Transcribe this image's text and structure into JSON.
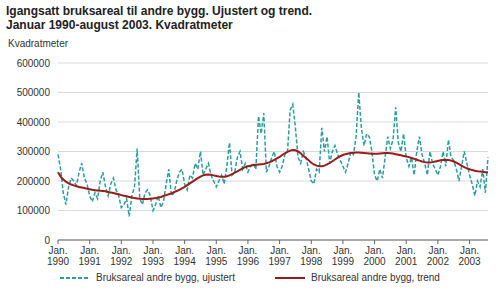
{
  "chart_data": {
    "type": "line",
    "title": "Igangsatt bruksareal til andre bygg. Ujustert og trend. Januar 1990-august 2003. Kvadratmeter",
    "y_label": "Kvadratmeter",
    "categories": [
      "Jan. 1990",
      null,
      null,
      null,
      null,
      null,
      null,
      null,
      null,
      null,
      null,
      null,
      "Jan. 1991",
      null,
      null,
      null,
      null,
      null,
      null,
      null,
      null,
      null,
      null,
      null,
      "Jan. 1992",
      null,
      null,
      null,
      null,
      null,
      null,
      null,
      null,
      null,
      null,
      null,
      "Jan. 1993",
      null,
      null,
      null,
      null,
      null,
      null,
      null,
      null,
      null,
      null,
      null,
      "Jan. 1994",
      null,
      null,
      null,
      null,
      null,
      null,
      null,
      null,
      null,
      null,
      null,
      "Jan. 1995",
      null,
      null,
      null,
      null,
      null,
      null,
      null,
      null,
      null,
      null,
      null,
      "Jan. 1996",
      null,
      null,
      null,
      null,
      null,
      null,
      null,
      null,
      null,
      null,
      null,
      "Jan. 1997",
      null,
      null,
      null,
      null,
      null,
      null,
      null,
      null,
      null,
      null,
      null,
      "Jan. 1998",
      null,
      null,
      null,
      null,
      null,
      null,
      null,
      null,
      null,
      null,
      null,
      "Jan. 1999",
      null,
      null,
      null,
      null,
      null,
      null,
      null,
      null,
      null,
      null,
      null,
      "Jan. 2000",
      null,
      null,
      null,
      null,
      null,
      null,
      null,
      null,
      null,
      null,
      null,
      "Jan. 2001",
      null,
      null,
      null,
      null,
      null,
      null,
      null,
      null,
      null,
      null,
      null,
      "Jan. 2002",
      null,
      null,
      null,
      null,
      null,
      null,
      null,
      null,
      null,
      null,
      null,
      "Jan. 2003",
      null,
      null,
      null,
      null,
      null,
      null,
      null
    ],
    "series": [
      {
        "name": "Bruksareal andre bygg, ujustert",
        "color": "#2a9d9f",
        "line_style": "dashed",
        "values": [
          290000,
          240000,
          160000,
          120000,
          180000,
          210000,
          200000,
          185000,
          230000,
          260000,
          210000,
          190000,
          150000,
          130000,
          160000,
          140000,
          200000,
          230000,
          180000,
          150000,
          190000,
          210000,
          170000,
          150000,
          110000,
          120000,
          140000,
          80000,
          150000,
          180000,
          310000,
          140000,
          120000,
          160000,
          170000,
          150000,
          100000,
          120000,
          150000,
          110000,
          130000,
          190000,
          240000,
          150000,
          160000,
          200000,
          230000,
          240000,
          190000,
          170000,
          220000,
          210000,
          260000,
          240000,
          300000,
          220000,
          240000,
          260000,
          220000,
          200000,
          180000,
          200000,
          220000,
          190000,
          250000,
          330000,
          220000,
          230000,
          280000,
          300000,
          240000,
          260000,
          230000,
          250000,
          260000,
          240000,
          420000,
          360000,
          430000,
          230000,
          250000,
          280000,
          300000,
          250000,
          230000,
          250000,
          290000,
          300000,
          440000,
          460000,
          380000,
          280000,
          260000,
          300000,
          280000,
          240000,
          200000,
          190000,
          240000,
          230000,
          380000,
          300000,
          350000,
          260000,
          300000,
          320000,
          290000,
          270000,
          250000,
          230000,
          260000,
          300000,
          290000,
          350000,
          500000,
          380000,
          320000,
          360000,
          350000,
          300000,
          220000,
          200000,
          240000,
          210000,
          280000,
          350000,
          310000,
          340000,
          450000,
          330000,
          300000,
          360000,
          280000,
          250000,
          280000,
          220000,
          300000,
          350000,
          290000,
          260000,
          220000,
          300000,
          260000,
          240000,
          220000,
          250000,
          300000,
          250000,
          340000,
          280000,
          270000,
          240000,
          200000,
          250000,
          300000,
          260000,
          220000,
          190000,
          150000,
          200000,
          180000,
          240000,
          160000,
          280000
        ]
      },
      {
        "name": "Bruksareal andre bygg, trend",
        "color": "#9b1b1b",
        "line_style": "solid",
        "values": [
          230000,
          215000,
          205000,
          198000,
          192000,
          188000,
          185000,
          182000,
          180000,
          178000,
          176000,
          174000,
          172000,
          170000,
          169000,
          168000,
          167000,
          166000,
          165000,
          163000,
          161000,
          159000,
          157000,
          155000,
          152000,
          150000,
          148000,
          146000,
          144000,
          142000,
          141000,
          140000,
          139000,
          139000,
          139000,
          140000,
          141000,
          142000,
          144000,
          146000,
          149000,
          152000,
          155000,
          158000,
          162000,
          166000,
          170000,
          175000,
          180000,
          186000,
          192000,
          198000,
          204000,
          210000,
          215000,
          219000,
          221000,
          222000,
          221000,
          219000,
          217000,
          215000,
          214000,
          214000,
          216000,
          219000,
          223000,
          228000,
          233000,
          238000,
          243000,
          247000,
          250000,
          252000,
          254000,
          255000,
          256000,
          257000,
          258000,
          260000,
          263000,
          267000,
          272000,
          277000,
          282000,
          288000,
          294000,
          299000,
          303000,
          305000,
          304000,
          300000,
          294000,
          286000,
          278000,
          270000,
          262000,
          256000,
          252000,
          250000,
          250000,
          252000,
          256000,
          261000,
          267000,
          273000,
          279000,
          284000,
          288000,
          291000,
          293000,
          295000,
          296000,
          297000,
          297000,
          296000,
          295000,
          294000,
          293000,
          292000,
          292000,
          292000,
          293000,
          294000,
          295000,
          295000,
          294000,
          293000,
          291000,
          289000,
          287000,
          285000,
          283000,
          281000,
          278000,
          275000,
          272000,
          269000,
          266000,
          264000,
          263000,
          263000,
          264000,
          266000,
          268000,
          270000,
          271000,
          272000,
          271000,
          269000,
          266000,
          262000,
          257000,
          252000,
          247000,
          243000,
          240000,
          237000,
          235000,
          233000,
          232000,
          231000,
          230000,
          230000
        ]
      }
    ],
    "ylim": [
      0,
      600000
    ],
    "yticks": [
      0,
      100000,
      200000,
      300000,
      400000,
      500000,
      600000
    ],
    "grid": true,
    "legend": "bottom",
    "marker": "none"
  }
}
